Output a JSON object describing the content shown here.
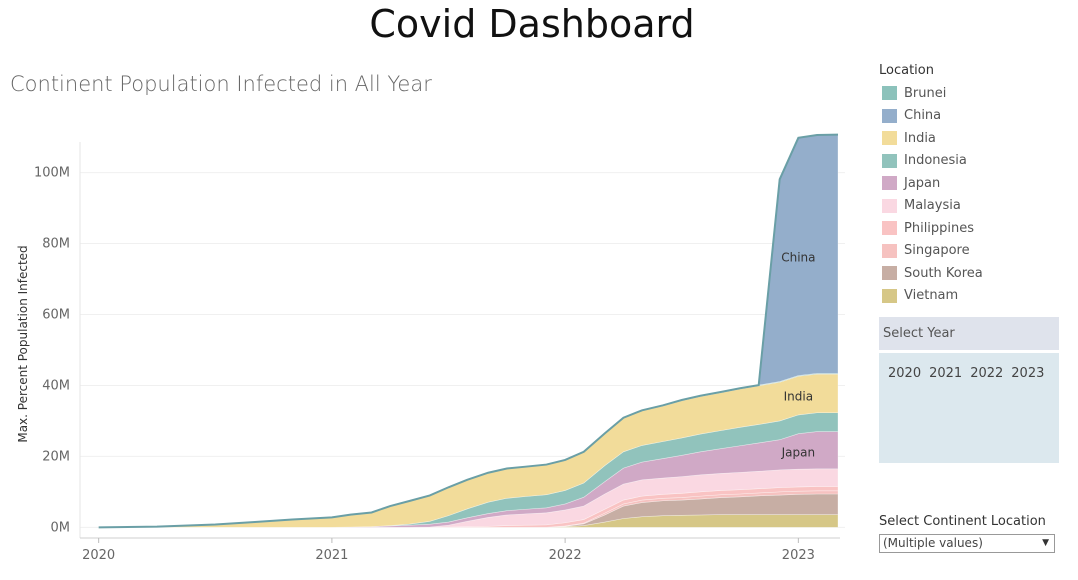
{
  "dashboard_title": "Covid Dashboard",
  "legend": {
    "title": "Location",
    "items": [
      {
        "label": "Brunei",
        "color": "#8cc2bb"
      },
      {
        "label": "China",
        "color": "#94aecb"
      },
      {
        "label": "India",
        "color": "#f2dc9a"
      },
      {
        "label": "Indonesia",
        "color": "#91c3bc"
      },
      {
        "label": "Japan",
        "color": "#d0a9c6"
      },
      {
        "label": "Malaysia",
        "color": "#fad8e2"
      },
      {
        "label": "Philippines",
        "color": "#f9c3c3"
      },
      {
        "label": "Singapore",
        "color": "#f6c2c0"
      },
      {
        "label": "South Korea",
        "color": "#c7aea4"
      },
      {
        "label": "Vietnam",
        "color": "#d6c787"
      }
    ]
  },
  "year_filter": {
    "title": "Select Year",
    "options": [
      "2020",
      "2021",
      "2022",
      "2023"
    ]
  },
  "continent_filter": {
    "label": "Select Continent Location",
    "value": "(Multiple values)"
  },
  "chart_data": {
    "type": "area",
    "title": "Continent Population Infected in All Year",
    "ylabel": "Max. Percent Population Infected",
    "xlabel": "",
    "ylim": [
      -3,
      112
    ],
    "xlim": [
      2019.92,
      2023.2
    ],
    "x_ticks": [
      2020,
      2021,
      2022,
      2023
    ],
    "x_tick_labels": [
      "2020",
      "2021",
      "2022",
      "2023"
    ],
    "y_ticks": [
      0,
      20,
      40,
      60,
      80,
      100
    ],
    "y_tick_labels": [
      "0M",
      "20M",
      "40M",
      "60M",
      "80M",
      "100M"
    ],
    "units": "millions",
    "grid": true,
    "legend_position": "right",
    "stacked": true,
    "x": [
      2020.0,
      2020.25,
      2020.5,
      2020.67,
      2020.83,
      2021.0,
      2021.08,
      2021.17,
      2021.25,
      2021.33,
      2021.42,
      2021.5,
      2021.58,
      2021.67,
      2021.75,
      2021.83,
      2021.92,
      2022.0,
      2022.08,
      2022.17,
      2022.25,
      2022.33,
      2022.42,
      2022.5,
      2022.58,
      2022.67,
      2022.75,
      2022.83,
      2022.92,
      2023.0,
      2023.08,
      2023.17
    ],
    "series": [
      {
        "name": "Vietnam",
        "values": [
          0,
          0,
          0,
          0,
          0,
          0,
          0,
          0,
          0,
          0,
          0,
          0,
          0,
          0,
          0,
          0,
          0,
          0.2,
          0.5,
          1.5,
          2.5,
          3.0,
          3.3,
          3.4,
          3.5,
          3.6,
          3.6,
          3.6,
          3.6,
          3.6,
          3.6,
          3.6
        ]
      },
      {
        "name": "South Korea",
        "values": [
          0,
          0,
          0,
          0,
          0,
          0,
          0,
          0,
          0,
          0,
          0,
          0,
          0,
          0,
          0,
          0,
          0,
          0.1,
          0.5,
          2.0,
          3.5,
          4.0,
          4.2,
          4.3,
          4.5,
          4.8,
          5.0,
          5.3,
          5.5,
          5.7,
          5.8,
          5.8
        ]
      },
      {
        "name": "Singapore",
        "values": [
          0,
          0,
          0,
          0,
          0,
          0,
          0,
          0,
          0,
          0,
          0,
          0,
          0,
          0,
          0,
          0,
          0,
          0.1,
          0.2,
          0.5,
          0.6,
          0.7,
          0.7,
          0.7,
          0.8,
          0.8,
          0.8,
          0.8,
          0.9,
          0.9,
          0.9,
          0.9
        ]
      },
      {
        "name": "Philippines",
        "values": [
          0,
          0,
          0,
          0,
          0,
          0,
          0,
          0,
          0,
          0,
          0,
          0.1,
          0.2,
          0.3,
          0.5,
          0.6,
          0.7,
          0.9,
          1.0,
          1.1,
          1.1,
          1.1,
          1.1,
          1.2,
          1.2,
          1.2,
          1.2,
          1.2,
          1.2,
          1.2,
          1.2,
          1.2
        ]
      },
      {
        "name": "Malaysia",
        "values": [
          0,
          0,
          0,
          0,
          0,
          0,
          0,
          0,
          0,
          0,
          0.1,
          0.5,
          1.5,
          2.5,
          3.0,
          3.2,
          3.4,
          3.6,
          3.8,
          4.3,
          4.5,
          4.6,
          4.6,
          4.7,
          4.8,
          4.8,
          4.9,
          4.9,
          5.0,
          5.0,
          5.0,
          5.0
        ]
      },
      {
        "name": "Japan",
        "values": [
          0,
          0,
          0,
          0,
          0,
          0,
          0.1,
          0.2,
          0.4,
          0.6,
          0.8,
          0.9,
          1.0,
          1.1,
          1.2,
          1.3,
          1.4,
          1.7,
          2.5,
          3.5,
          4.5,
          5.0,
          5.5,
          6.0,
          6.5,
          7.0,
          7.5,
          8.0,
          8.5,
          10.0,
          10.5,
          10.5
        ]
      },
      {
        "name": "Indonesia",
        "values": [
          0,
          0,
          0,
          0,
          0,
          0,
          0,
          0,
          0.1,
          0.3,
          0.8,
          1.8,
          2.5,
          3.2,
          3.5,
          3.6,
          3.7,
          3.8,
          4.0,
          4.5,
          4.6,
          4.7,
          4.8,
          4.9,
          5.0,
          5.1,
          5.2,
          5.2,
          5.3,
          5.3,
          5.3,
          5.3
        ]
      },
      {
        "name": "India",
        "values": [
          0,
          0.2,
          0.8,
          1.5,
          2.2,
          2.8,
          3.5,
          4.0,
          5.5,
          6.5,
          7.3,
          8.0,
          8.2,
          8.3,
          8.4,
          8.4,
          8.5,
          8.6,
          8.8,
          9.0,
          9.5,
          9.8,
          10.0,
          10.5,
          10.6,
          10.7,
          10.8,
          10.9,
          10.9,
          10.9,
          10.9,
          10.9
        ]
      },
      {
        "name": "Brunei",
        "values": [
          0,
          0,
          0,
          0,
          0,
          0,
          0,
          0,
          0,
          0,
          0,
          0,
          0,
          0,
          0,
          0,
          0,
          0,
          0,
          0.1,
          0.1,
          0.1,
          0.2,
          0.2,
          0.2,
          0.2,
          0.2,
          0.2,
          0.2,
          0.2,
          0.2,
          0.2
        ]
      },
      {
        "name": "China",
        "values": [
          0,
          0,
          0,
          0,
          0,
          0,
          0,
          0,
          0,
          0,
          0,
          0,
          0,
          0,
          0,
          0,
          0,
          0,
          0,
          0,
          0,
          0,
          0,
          0,
          0,
          0,
          0,
          0,
          57.0,
          67.0,
          67.2,
          67.3
        ]
      }
    ],
    "annotations": [
      {
        "text": "China",
        "series": "China"
      },
      {
        "text": "India",
        "series": "India"
      },
      {
        "text": "Japan",
        "series": "Japan"
      }
    ]
  }
}
